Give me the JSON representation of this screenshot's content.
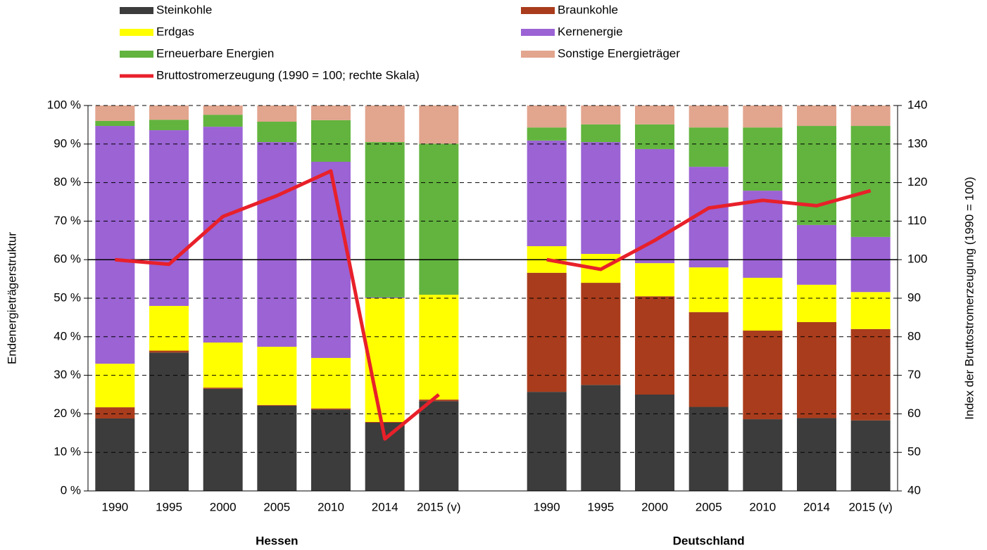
{
  "chart_data": {
    "type": "bar",
    "stacked": true,
    "categories": [
      "1990",
      "1995",
      "2000",
      "2005",
      "2010",
      "2014",
      "2015 (v)",
      null,
      "1990",
      "1995",
      "2000",
      "2005",
      "2010",
      "2014",
      "2015 (v)"
    ],
    "groups": [
      "Hessen",
      "Deutschland"
    ],
    "ylabel": "Endenergieträgerstruktur",
    "y2label": "Index der Bruttostromerzeugung (1990 = 100)",
    "ylim": [
      0,
      100
    ],
    "yticks": [
      {
        "value": 0,
        "label": "0 %"
      },
      {
        "value": 10,
        "label": "10 %"
      },
      {
        "value": 20,
        "label": "20 %"
      },
      {
        "value": 30,
        "label": "30 %"
      },
      {
        "value": 40,
        "label": "40 %"
      },
      {
        "value": 50,
        "label": "50 %"
      },
      {
        "value": 60,
        "label": "60 %"
      },
      {
        "value": 70,
        "label": "70 %"
      },
      {
        "value": 80,
        "label": "80 %"
      },
      {
        "value": 90,
        "label": "90 %"
      },
      {
        "value": 100,
        "label": "100 %"
      }
    ],
    "y2lim": [
      40,
      140
    ],
    "y2ticks": [
      40,
      50,
      60,
      70,
      80,
      90,
      100,
      110,
      120,
      130,
      140
    ],
    "y2_reference": 100,
    "grid": true,
    "series": [
      {
        "name": "Steinkohle",
        "color": "#3c3c3c",
        "values": [
          18.8,
          35.9,
          26.5,
          22.1,
          21.1,
          17.7,
          23.3,
          null,
          25.7,
          27.5,
          25.0,
          21.8,
          18.6,
          18.9,
          18.3
        ]
      },
      {
        "name": "Braunkohle",
        "color": "#a93c1c",
        "values": [
          2.9,
          0.5,
          0.3,
          0.2,
          0.3,
          0.2,
          0.4,
          null,
          30.9,
          26.5,
          25.5,
          24.6,
          23.0,
          24.9,
          23.7
        ]
      },
      {
        "name": "Erdgas",
        "color": "#ffff00",
        "values": [
          11.3,
          11.6,
          11.7,
          15.1,
          13.1,
          32.1,
          27.2,
          null,
          6.9,
          7.5,
          8.6,
          11.6,
          13.7,
          9.7,
          9.6
        ]
      },
      {
        "name": "Kernenergie",
        "color": "#9b63d4",
        "values": [
          61.7,
          45.6,
          56.0,
          53.1,
          50.9,
          0.2,
          0.0,
          null,
          27.4,
          29.0,
          29.6,
          26.1,
          22.6,
          15.5,
          14.3
        ]
      },
      {
        "name": "Erneuerbare Energien",
        "color": "#62b43e",
        "values": [
          1.3,
          2.7,
          3.1,
          5.3,
          10.8,
          40.3,
          39.2,
          null,
          3.4,
          4.6,
          6.4,
          10.2,
          16.4,
          25.7,
          28.8
        ]
      },
      {
        "name": "Sonstige Energieträger",
        "color": "#e2a58e",
        "values": [
          4.0,
          3.7,
          2.4,
          4.2,
          3.8,
          9.5,
          9.9,
          null,
          5.7,
          4.9,
          4.9,
          5.7,
          5.7,
          5.3,
          5.3
        ]
      },
      {
        "name": "Bruttostromerzeugung (1990 = 100; rechte Skala)",
        "color": "#e8202a",
        "type": "line",
        "axis": "y2",
        "values": [
          100,
          98.8,
          111.2,
          116.6,
          123,
          53.5,
          65,
          null,
          100,
          97.5,
          105,
          113.4,
          115.4,
          114,
          117.9
        ]
      }
    ]
  }
}
